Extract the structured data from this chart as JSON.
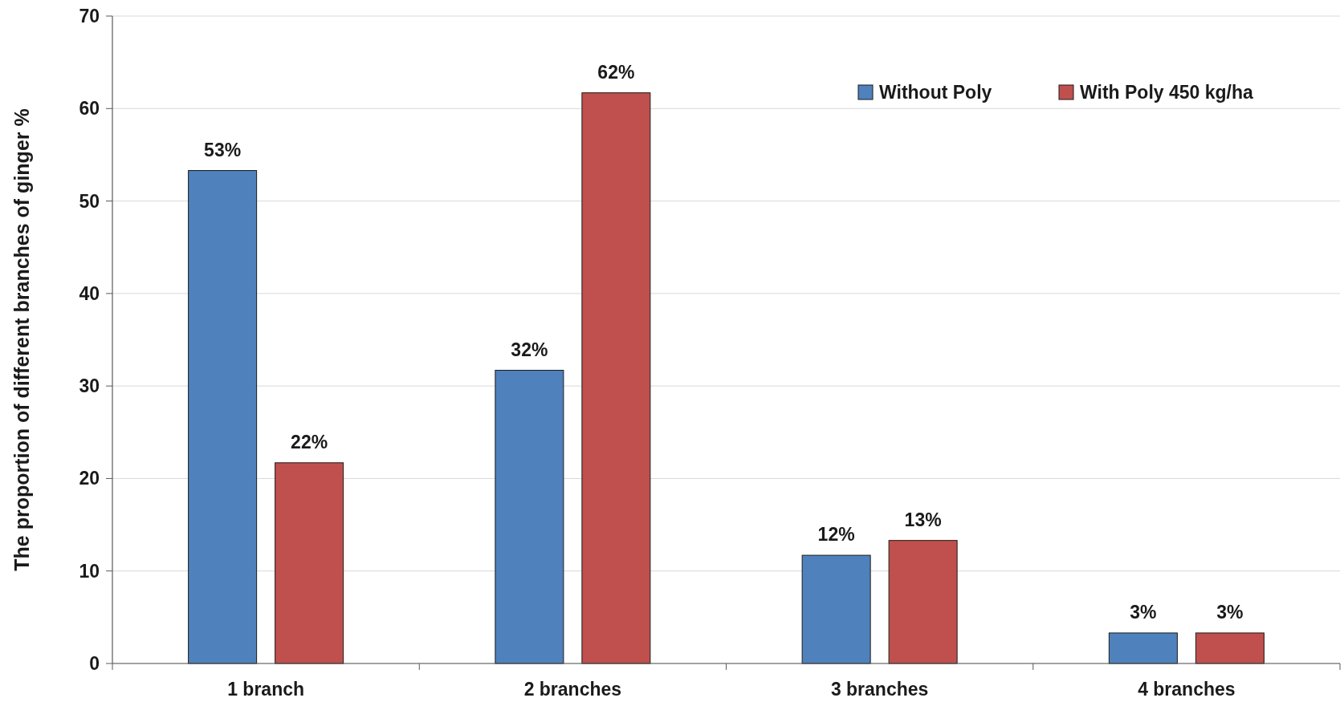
{
  "chart_data": {
    "type": "bar",
    "ylabel": "The proportion of different branches of ginger %",
    "categories": [
      "1 branch",
      "2 branches",
      "3 branches",
      "4 branches"
    ],
    "series": [
      {
        "name": "Without Poly",
        "color": "#4f81bd",
        "values": [
          53.3,
          31.7,
          11.7,
          3.3
        ],
        "value_labels": [
          "53%",
          "32%",
          "12%",
          "3%"
        ]
      },
      {
        "name": "With Poly 450 kg/ha",
        "color": "#c0504d",
        "values": [
          21.7,
          61.7,
          13.3,
          3.3
        ],
        "value_labels": [
          "22%",
          "62%",
          "13%",
          "3%"
        ]
      }
    ],
    "ylim": [
      0,
      70
    ],
    "yticks": [
      0,
      10,
      20,
      30,
      40,
      50,
      60,
      70
    ],
    "grid": "y",
    "legend": "top right"
  }
}
